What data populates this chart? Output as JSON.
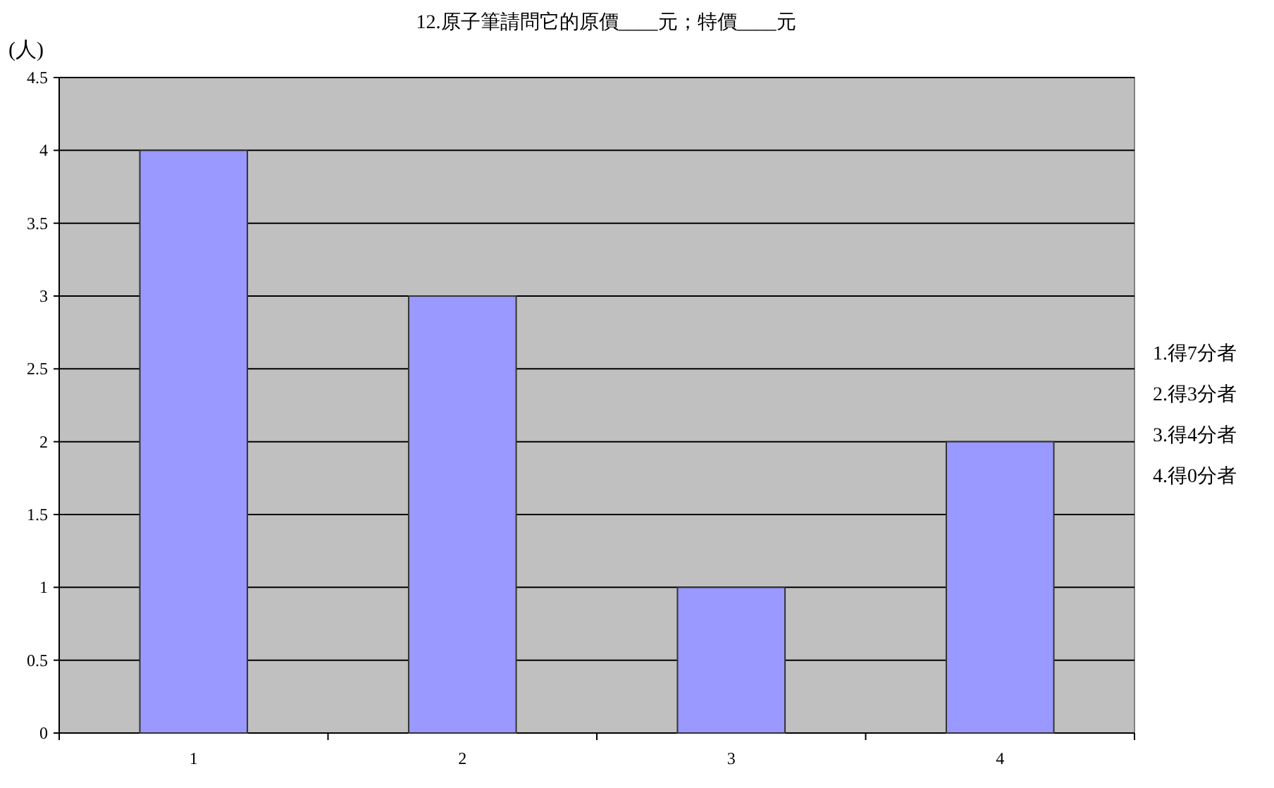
{
  "chart_data": {
    "type": "bar",
    "title": "12.原子筆請問它的原價____元；特價____元",
    "ylabel": "(人)",
    "categories": [
      "1",
      "2",
      "3",
      "4"
    ],
    "values": [
      4,
      3,
      1,
      2
    ],
    "color": "#9999ff",
    "ylim": [
      0,
      4.5
    ],
    "yticks": [
      0,
      0.5,
      1,
      1.5,
      2,
      2.5,
      3,
      3.5,
      4,
      4.5
    ],
    "grid": "y",
    "annotations": [
      "1.得7分者",
      "2.得3分者",
      "3.得4分者",
      "4.得0分者"
    ]
  }
}
